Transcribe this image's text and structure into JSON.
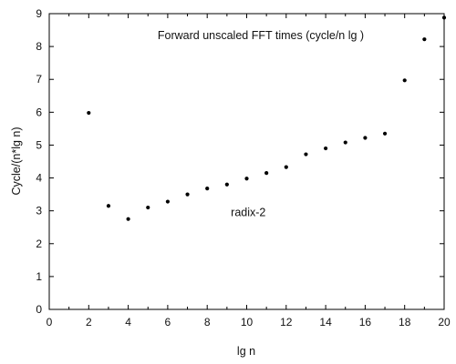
{
  "chart_data": {
    "type": "scatter",
    "title": "Forward unscaled FFT times (cycle/n lg )",
    "xlabel": "lg n",
    "ylabel": "Cycle/(n*lg n)",
    "xlim": [
      0,
      20
    ],
    "ylim": [
      0,
      9
    ],
    "xticks": [
      0,
      2,
      4,
      6,
      8,
      10,
      12,
      14,
      16,
      18,
      20
    ],
    "yticks": [
      0,
      1,
      2,
      3,
      4,
      5,
      6,
      7,
      8,
      9
    ],
    "grid": false,
    "legend": "none",
    "annotations": [
      {
        "text": "radix-2",
        "x": 9.2,
        "y": 2.95
      }
    ],
    "series": [
      {
        "x": [
          2,
          3,
          4,
          5,
          6,
          7,
          8,
          9,
          10,
          11,
          12,
          13,
          14,
          15,
          16,
          17,
          18,
          19,
          20
        ],
        "y": [
          5.98,
          3.15,
          2.75,
          3.1,
          3.28,
          3.5,
          3.68,
          3.8,
          3.98,
          4.15,
          4.33,
          4.72,
          4.9,
          5.08,
          5.22,
          5.35,
          6.97,
          8.22,
          8.88
        ],
        "color": "#000000"
      }
    ]
  }
}
